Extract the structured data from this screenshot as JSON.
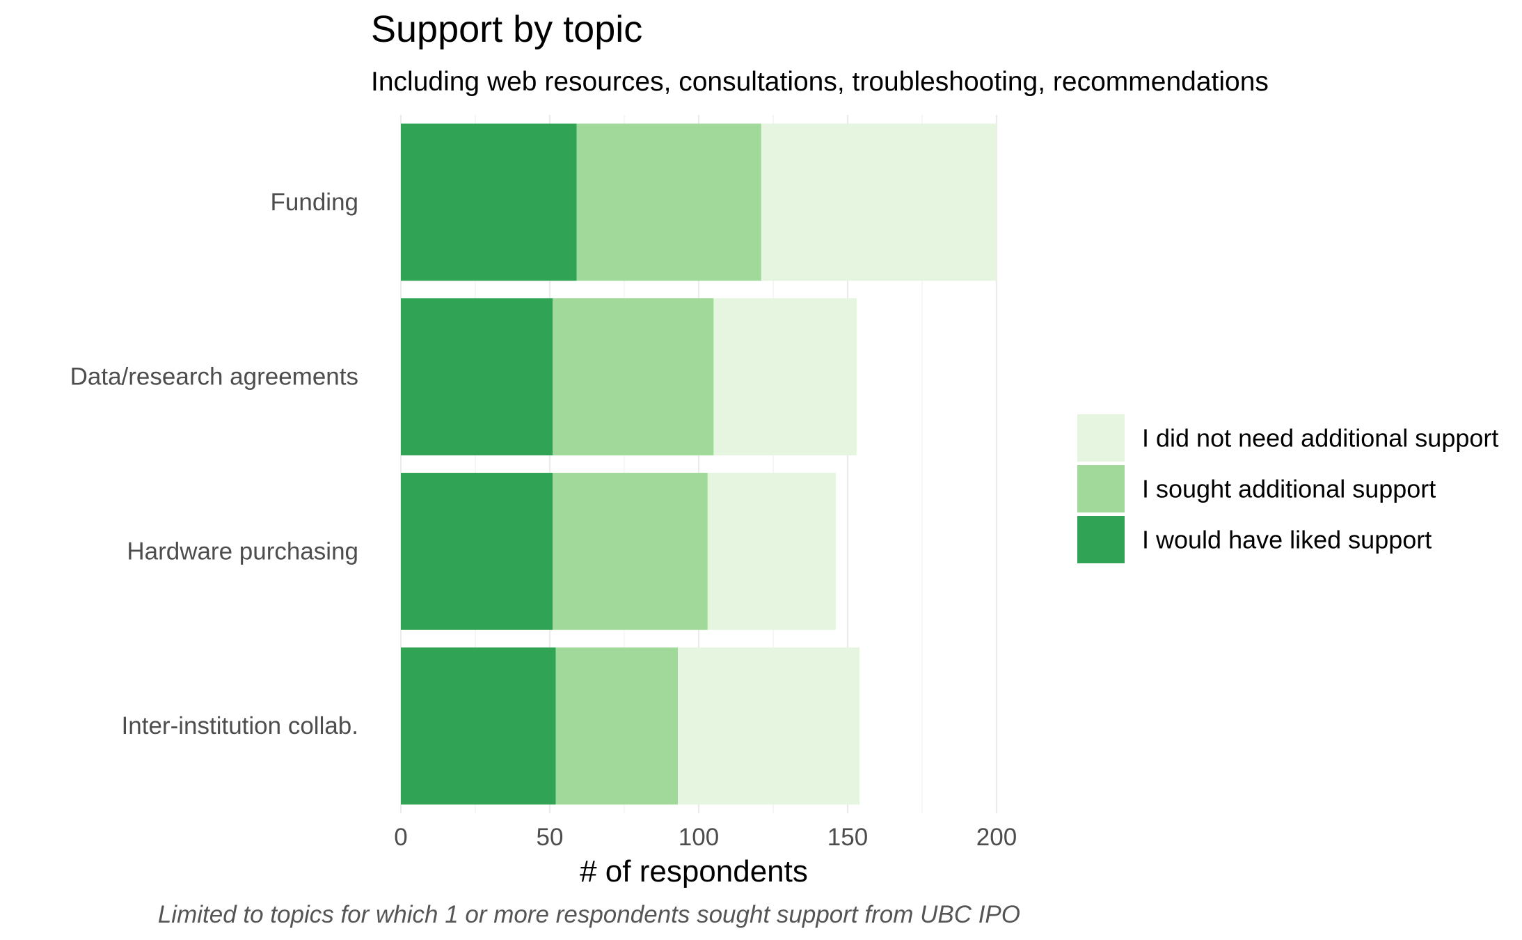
{
  "chart_data": {
    "type": "bar",
    "orientation": "horizontal",
    "stacked": true,
    "title": "Support by topic",
    "subtitle": "Including web resources, consultations, troubleshooting, recommendations",
    "xlabel": "# of respondents",
    "ylabel": "",
    "caption": "Limited to topics for which 1 or more respondents sought support from UBC IPO",
    "xlim": [
      0,
      200
    ],
    "x_ticks": [
      0,
      50,
      100,
      150,
      200
    ],
    "grid": true,
    "legend_position": "right",
    "categories": [
      "Funding",
      "Data/research agreements",
      "Hardware purchasing",
      "Inter-institution collab."
    ],
    "series": [
      {
        "name": "I would have liked support",
        "color": "#31a354",
        "values": [
          59,
          51,
          51,
          52
        ]
      },
      {
        "name": "I sought additional support",
        "color": "#a1d99b",
        "values": [
          62,
          54,
          52,
          41
        ]
      },
      {
        "name": "I did not need additional support",
        "color": "#e5f5e0",
        "values": [
          79,
          48,
          43,
          61
        ]
      }
    ],
    "legend_order": [
      "I did not need additional support",
      "I sought additional support",
      "I would have liked support"
    ]
  }
}
